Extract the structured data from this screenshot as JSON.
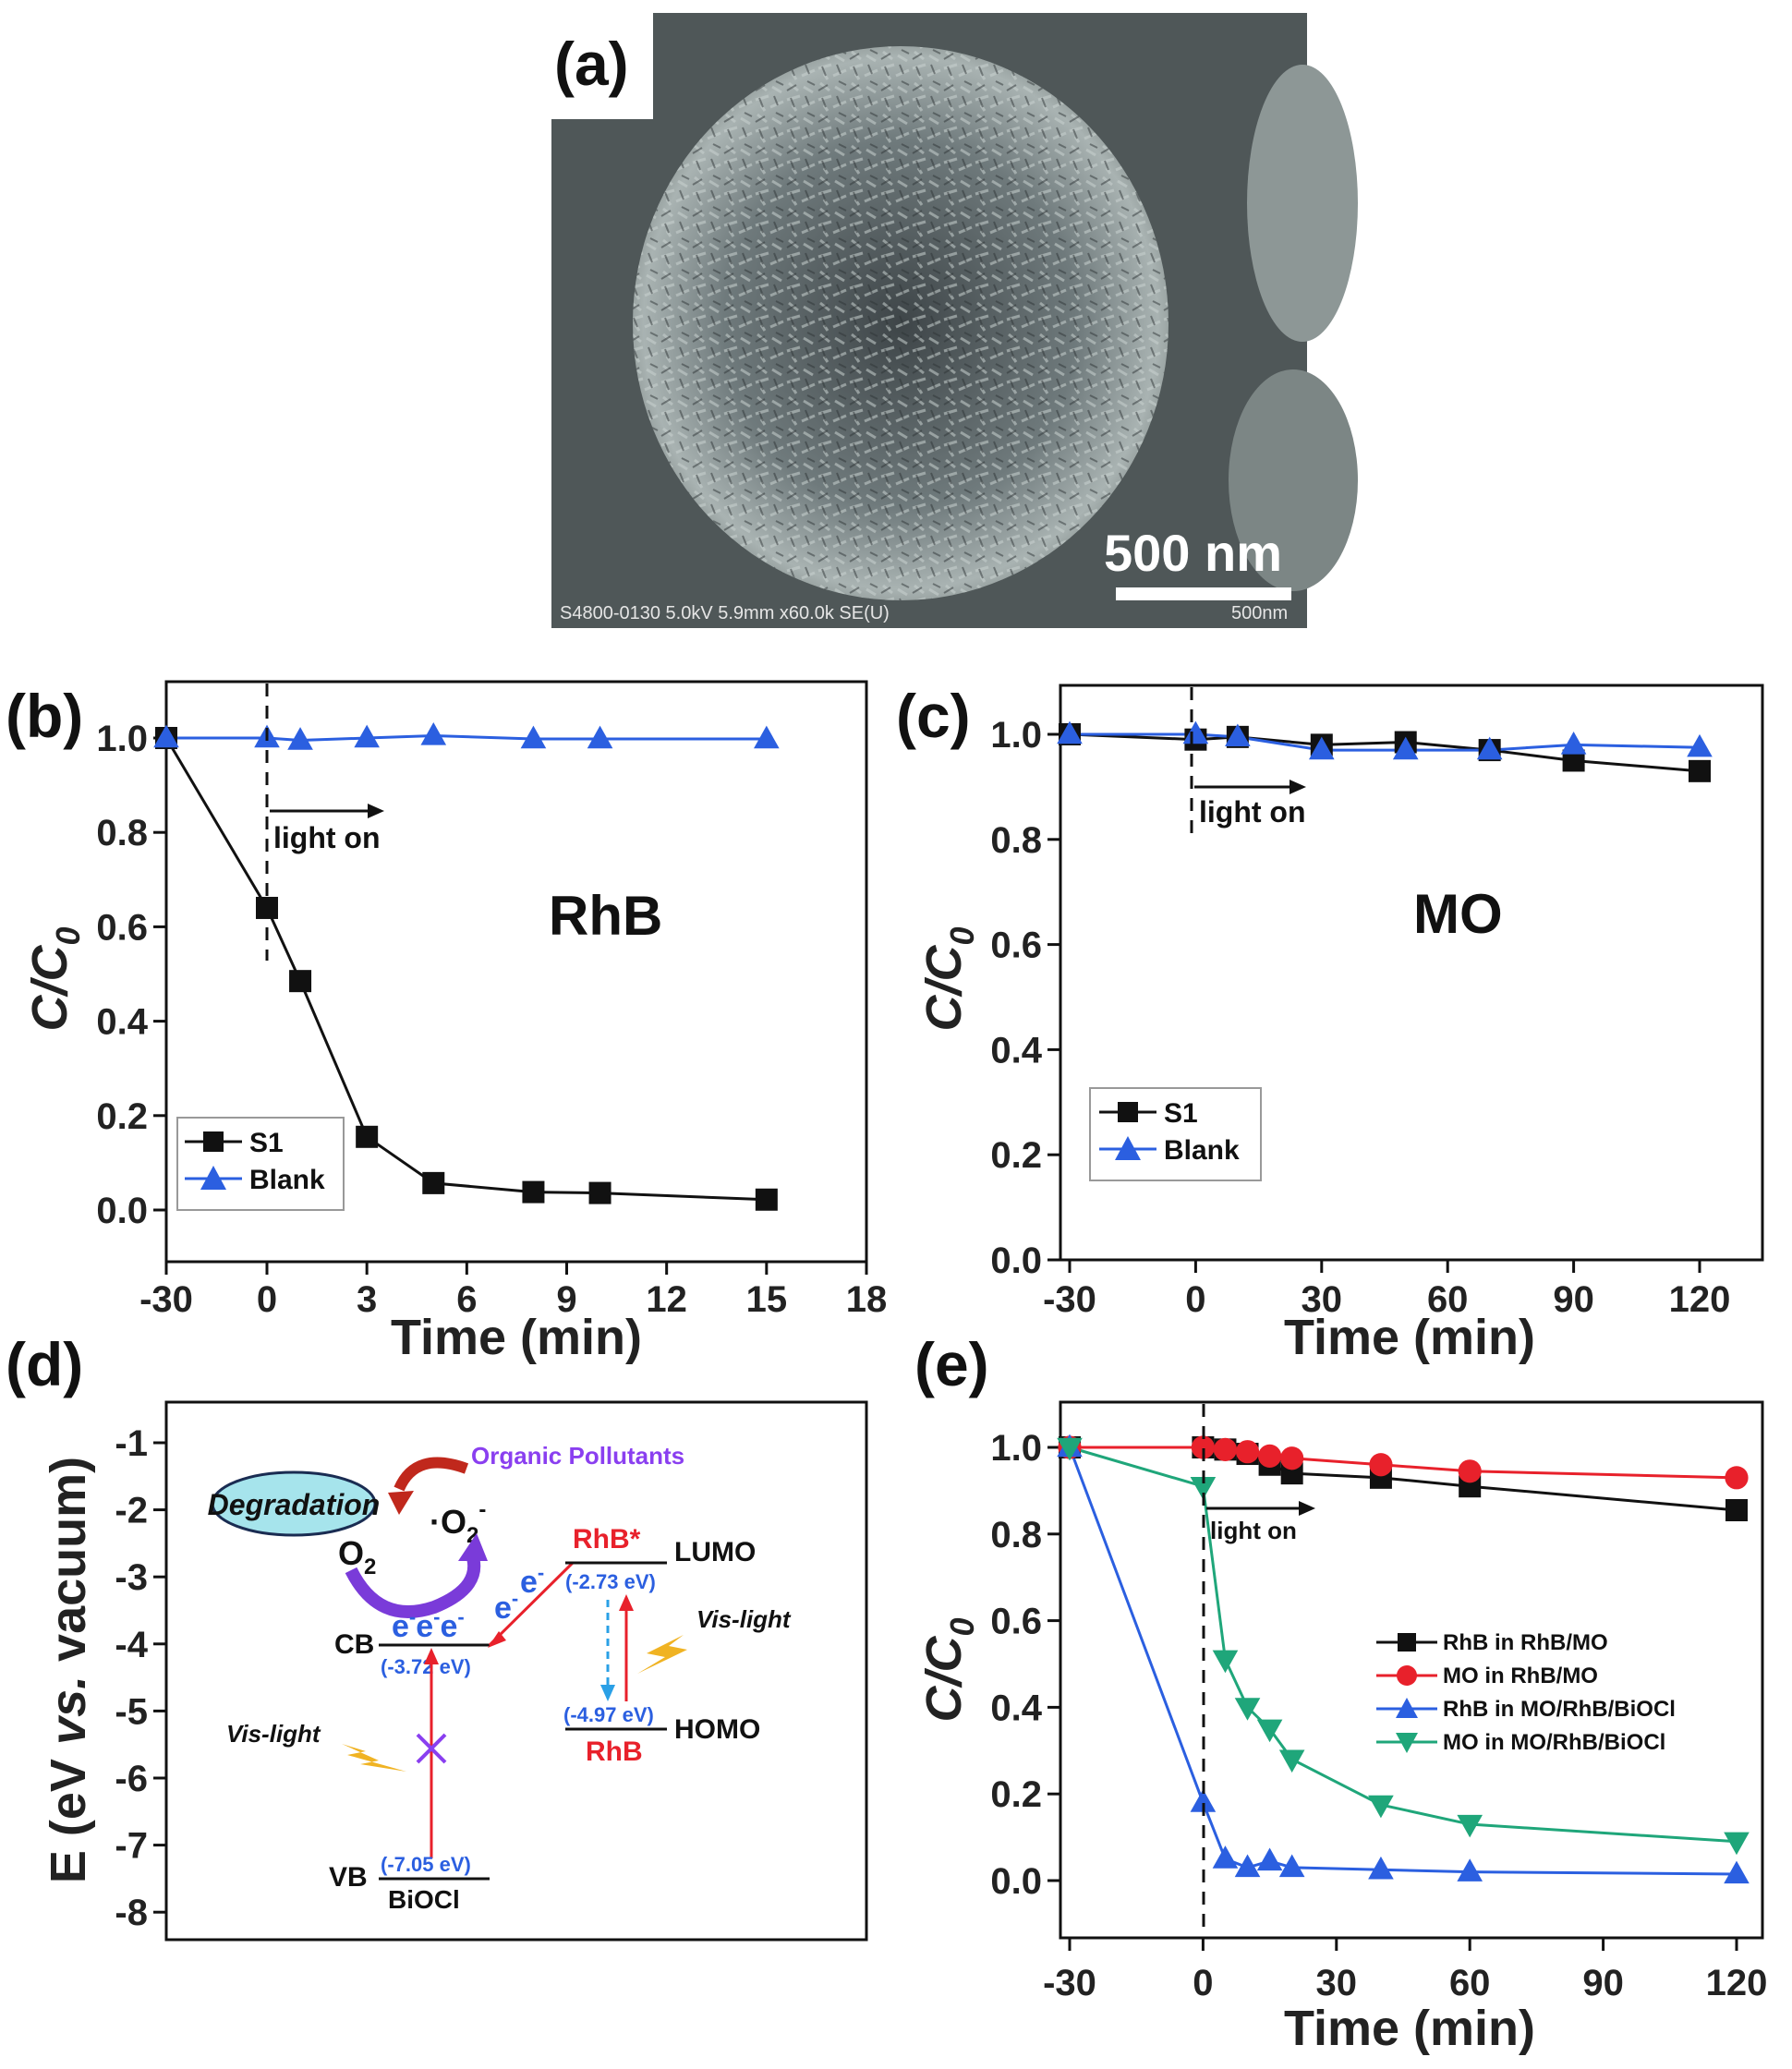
{
  "panel_labels": [
    "(a)",
    "(b)",
    "(c)",
    "(d)",
    "(e)"
  ],
  "sem": {
    "scale_text": "500 nm",
    "info_text": "S4800-0130 5.0kV 5.9mm x60.0k SE(U)",
    "info_scale": "500nm"
  },
  "chart_data": [
    {
      "id": "b",
      "type": "line",
      "xlabel": "Time (min)",
      "ylabel": "C/C0",
      "ylabel_main": "C/C",
      "ylabel_sub": "0",
      "annotation": "RhB",
      "light_label": "light on",
      "x_tick_labels": [
        "-30",
        "0",
        "3",
        "6",
        "9",
        "12",
        "15",
        "18"
      ],
      "y_tick_labels": [
        "0.0",
        "0.2",
        "0.4",
        "0.6",
        "0.8",
        "1.0"
      ],
      "ylim": [
        -0.05,
        1.1
      ],
      "legend_position": "lower-left",
      "series": [
        {
          "name": "S1",
          "color": "#111111",
          "marker": "square",
          "x": [
            -30,
            0,
            1,
            3,
            5,
            8,
            10,
            15
          ],
          "y": [
            1.0,
            0.64,
            0.485,
            0.155,
            0.057,
            0.038,
            0.036,
            0.022
          ]
        },
        {
          "name": "Blank",
          "color": "#2b5fe0",
          "marker": "triangle-up",
          "x": [
            -30,
            0,
            1,
            3,
            5,
            8,
            10,
            15
          ],
          "y": [
            1.0,
            1.0,
            0.995,
            1.0,
            1.005,
            0.998,
            0.998,
            0.998
          ]
        }
      ]
    },
    {
      "id": "c",
      "type": "line",
      "xlabel": "Time (min)",
      "ylabel": "C/C0",
      "ylabel_main": "C/C",
      "ylabel_sub": "0",
      "annotation": "MO",
      "light_label": "light on",
      "x_tick_labels": [
        "-30",
        "0",
        "30",
        "60",
        "90",
        "120"
      ],
      "y_tick_labels": [
        "0.0",
        "0.2",
        "0.4",
        "0.6",
        "0.8",
        "1.0"
      ],
      "xlim": [
        -30,
        135
      ],
      "ylim": [
        0,
        1.08
      ],
      "legend_position": "lower-left",
      "series": [
        {
          "name": "S1",
          "color": "#111111",
          "marker": "square",
          "x": [
            -30,
            0,
            10,
            30,
            50,
            70,
            90,
            120
          ],
          "y": [
            1.0,
            0.99,
            0.995,
            0.98,
            0.985,
            0.97,
            0.95,
            0.93
          ]
        },
        {
          "name": "Blank",
          "color": "#2b5fe0",
          "marker": "triangle-up",
          "x": [
            -30,
            0,
            10,
            30,
            50,
            70,
            90,
            120
          ],
          "y": [
            1.0,
            1.0,
            0.995,
            0.97,
            0.97,
            0.97,
            0.98,
            0.975
          ]
        }
      ]
    },
    {
      "id": "e",
      "type": "line",
      "xlabel": "Time (min)",
      "ylabel": "C/C0",
      "ylabel_main": "C/C",
      "ylabel_sub": "0",
      "light_label": "light on",
      "x_tick_labels": [
        "-30",
        "0",
        "30",
        "60",
        "90",
        "120"
      ],
      "y_tick_labels": [
        "0.0",
        "0.2",
        "0.4",
        "0.6",
        "0.8",
        "1.0"
      ],
      "xlim": [
        -30,
        127
      ],
      "ylim": [
        -0.08,
        1.08
      ],
      "legend_position": "center-right",
      "series": [
        {
          "name": "RhB in RhB/MO",
          "color": "#111111",
          "marker": "square",
          "x": [
            -30,
            0,
            5,
            10,
            15,
            20,
            40,
            60,
            120
          ],
          "y": [
            1.0,
            1.0,
            0.995,
            0.985,
            0.96,
            0.94,
            0.93,
            0.91,
            0.855
          ]
        },
        {
          "name": "MO in RhB/MO",
          "color": "#e8212b",
          "marker": "circle",
          "x": [
            -30,
            0,
            5,
            10,
            15,
            20,
            40,
            60,
            120
          ],
          "y": [
            1.0,
            1.0,
            0.995,
            0.99,
            0.98,
            0.975,
            0.96,
            0.945,
            0.93
          ]
        },
        {
          "name": "RhB in MO/RhB/BiOCl",
          "color": "#2b5fe0",
          "marker": "triangle-up",
          "x": [
            -30,
            0,
            5,
            10,
            15,
            20,
            40,
            60,
            120
          ],
          "y": [
            1.0,
            0.18,
            0.05,
            0.03,
            0.045,
            0.03,
            0.025,
            0.02,
            0.015
          ]
        },
        {
          "name": "MO in MO/RhB/BiOCl",
          "color": "#1fa67a",
          "marker": "triangle-down",
          "x": [
            -30,
            0,
            5,
            10,
            15,
            20,
            40,
            60,
            120
          ],
          "y": [
            1.0,
            0.91,
            0.51,
            0.4,
            0.35,
            0.28,
            0.175,
            0.13,
            0.09
          ]
        }
      ]
    },
    {
      "id": "d",
      "type": "diagram",
      "ylabel_parts": [
        "E (eV ",
        "vs.",
        " vacuum)"
      ],
      "y_tick_labels": [
        "-1",
        "-2",
        "-3",
        "-4",
        "-5",
        "-6",
        "-7",
        "-8"
      ],
      "labels": {
        "organic": "Organic Pollutants",
        "degradation": "Degradation",
        "o2_dot": "·O",
        "o2_dot_sub": "2",
        "o2_dot_sup": "-",
        "o2": "O",
        "o2_sub": "2",
        "cb": "CB",
        "cb_electrons": "e",
        "cb_e_sup": "-",
        "cb_energy": "(-3.72 eV)",
        "vb": "VB",
        "vb_energy": "(-7.05 eV)",
        "bioci": "BiOCl",
        "rhb_star": "RhB*",
        "lumo": "LUMO",
        "lumo_energy": "(-2.73 eV)",
        "homo_energy": "(-4.97 eV)",
        "rhb": "RhB",
        "homo": "HOMO",
        "vis_light": "Vis-light",
        "e_transfer": "e",
        "e_sup": "-"
      }
    }
  ]
}
